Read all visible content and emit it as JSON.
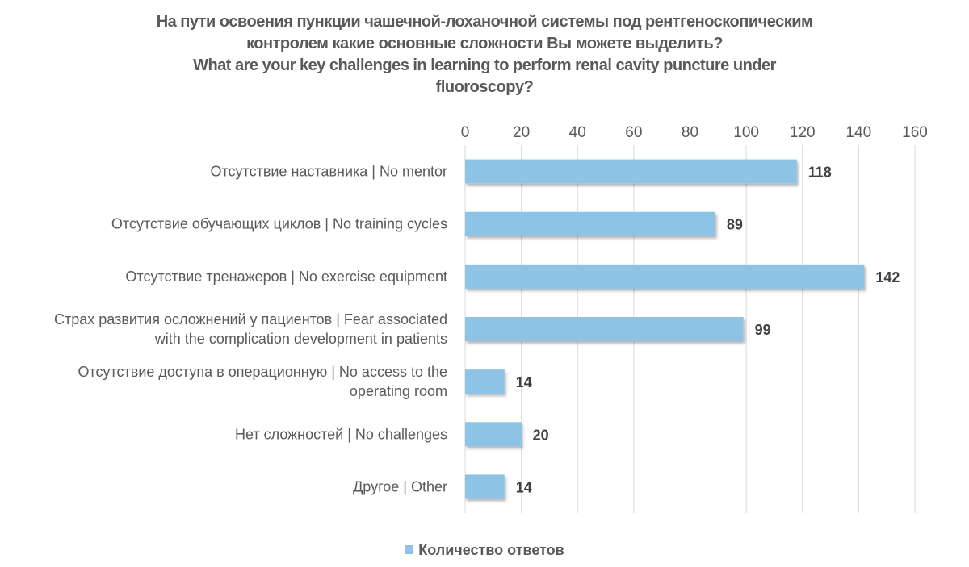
{
  "chart_data": {
    "type": "bar",
    "orientation": "horizontal",
    "title": [
      "На пути освоения пункции чашечной-лоханочной системы под рентгеноскопическим",
      "контролем какие основные сложности Вы можете выделить?",
      "What are your key challenges in learning to perform renal cavity puncture under",
      "fluoroscopy?"
    ],
    "categories": [
      [
        "Отсутствие наставника | No mentor"
      ],
      [
        "Отсутствие обучающих циклов | No training cycles"
      ],
      [
        "Отсутствие тренажеров | No exercise equipment"
      ],
      [
        "Страх развития осложнений у пациентов | Fear associated",
        "with the complication development in patients"
      ],
      [
        "Отсутствие доступа в операционную | No access to the",
        "operating room"
      ],
      [
        "Нет сложностей | No challenges"
      ],
      [
        "Другое | Other"
      ]
    ],
    "series": [
      {
        "name": "Количество ответов",
        "values": [
          118,
          89,
          142,
          99,
          14,
          20,
          14
        ],
        "color": "#8fc3e6"
      }
    ],
    "xlim": [
      0,
      160
    ],
    "x_ticks": [
      0,
      20,
      40,
      60,
      80,
      100,
      120,
      140,
      160
    ],
    "x_axis_position": "top",
    "grid": true,
    "data_labels": true,
    "legend_position": "bottom",
    "xlabel": "",
    "ylabel": ""
  }
}
